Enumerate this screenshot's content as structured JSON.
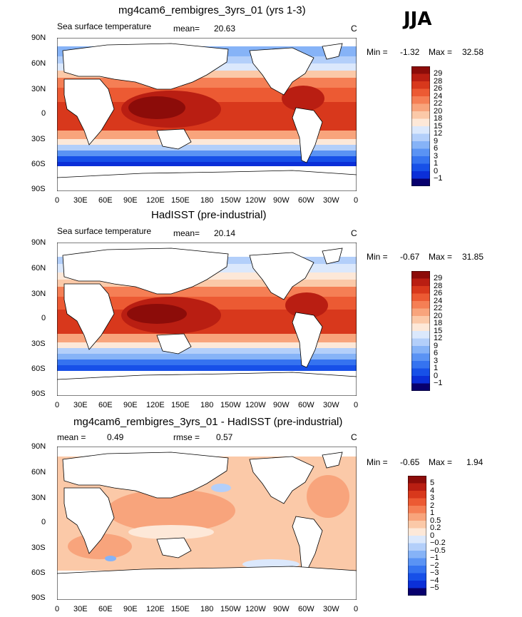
{
  "season": "JJA",
  "panels": [
    {
      "title": "mg4cam6_rembigres_3yrs_01 (yrs 1-3)",
      "left_label": "Sea surface temperature",
      "stat1_label": "mean=",
      "stat1_value": "20.63",
      "stat2_label": "",
      "stat2_value": "",
      "units": "C",
      "min_label": "Min =",
      "min_value": "-1.32",
      "max_label": "Max =",
      "max_value": "32.58",
      "colorbar_labels": [
        "29",
        "28",
        "26",
        "24",
        "22",
        "20",
        "18",
        "15",
        "12",
        "9",
        "6",
        "3",
        "1",
        "0",
        "−1"
      ]
    },
    {
      "title": "HadISST (pre-industrial)",
      "left_label": "Sea surface temperature",
      "stat1_label": "mean=",
      "stat1_value": "20.14",
      "stat2_label": "",
      "stat2_value": "",
      "units": "C",
      "min_label": "Min =",
      "min_value": "-0.67",
      "max_label": "Max =",
      "max_value": "31.85",
      "colorbar_labels": [
        "29",
        "28",
        "26",
        "24",
        "22",
        "20",
        "18",
        "15",
        "12",
        "9",
        "6",
        "3",
        "1",
        "0",
        "−1"
      ]
    },
    {
      "title": "mg4cam6_rembigres_3yrs_01 - HadISST (pre-industrial)",
      "left_label": "",
      "stat1_label": "mean =",
      "stat1_value": "0.49",
      "stat2_label": "rmse =",
      "stat2_value": "0.57",
      "units": "C",
      "min_label": "Min =",
      "min_value": "-0.65",
      "max_label": "Max =",
      "max_value": "1.94",
      "colorbar_labels": [
        "5",
        "4",
        "3",
        "2",
        "1",
        "0.5",
        "0.2",
        "0",
        "−0.2",
        "−0.5",
        "−1",
        "−2",
        "−3",
        "−4",
        "−5"
      ]
    }
  ],
  "lat_labels": [
    "90N",
    "60N",
    "30N",
    "0",
    "30S",
    "60S",
    "90S"
  ],
  "lon_labels": [
    "0",
    "30E",
    "60E",
    "90E",
    "120E",
    "150E",
    "180",
    "150W",
    "120W",
    "90W",
    "60W",
    "30W",
    "0"
  ],
  "colors": {
    "sst_scale": [
      "#08006e",
      "#0b2fd8",
      "#1750e8",
      "#3573f0",
      "#5a93f4",
      "#86b3f7",
      "#b3cffa",
      "#dbe8fc",
      "#fde8d8",
      "#fbc9a8",
      "#f8a47c",
      "#f57f55",
      "#ec5a33",
      "#d8381c",
      "#b91e12",
      "#8c0c09"
    ],
    "diff_scale": [
      "#08006e",
      "#0b2fd8",
      "#1750e8",
      "#3573f0",
      "#5a93f4",
      "#86b3f7",
      "#b3cffa",
      "#dbe8fc",
      "#fde8d8",
      "#fbc9a8",
      "#f8a47c",
      "#f57f55",
      "#ec5a33",
      "#d8381c",
      "#b91e12",
      "#8c0c09"
    ]
  }
}
